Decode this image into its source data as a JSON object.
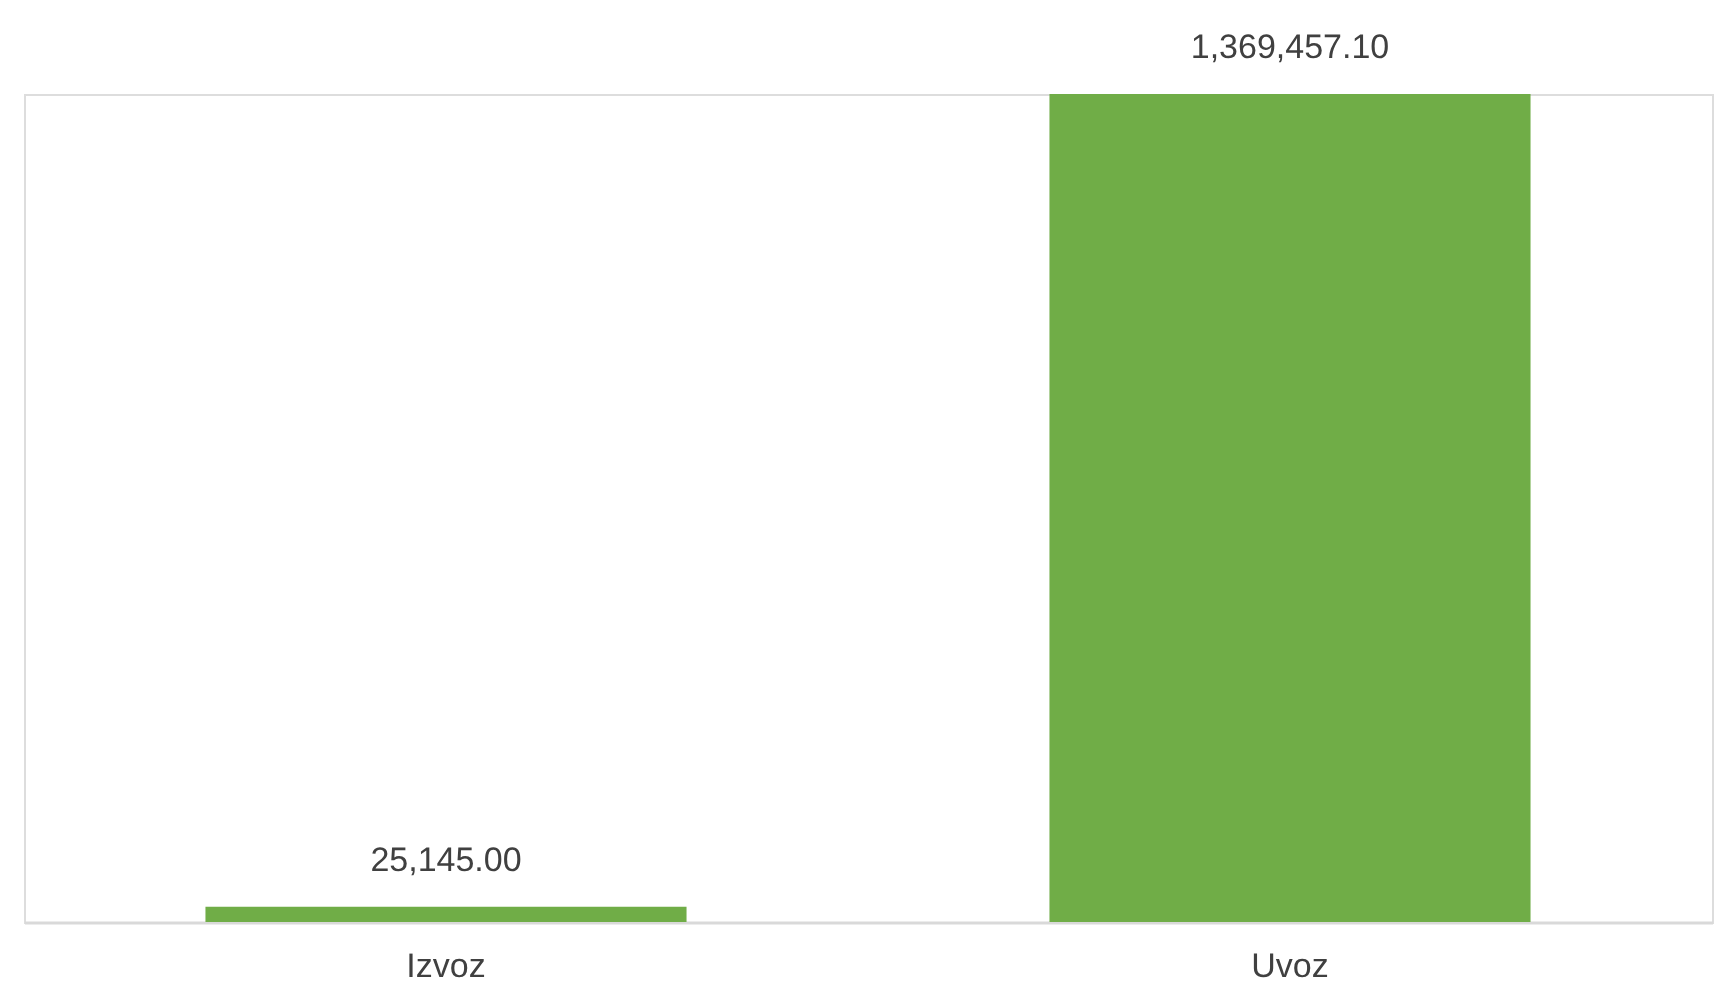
{
  "chart_data": {
    "type": "bar",
    "categories": [
      "Izvoz",
      "Uvoz"
    ],
    "values": [
      25145.0,
      1369457.1
    ],
    "color": "#70ad47",
    "value_labels": [
      "25,145.00",
      "1,369,457.10"
    ],
    "tick_labels": "x"
  }
}
